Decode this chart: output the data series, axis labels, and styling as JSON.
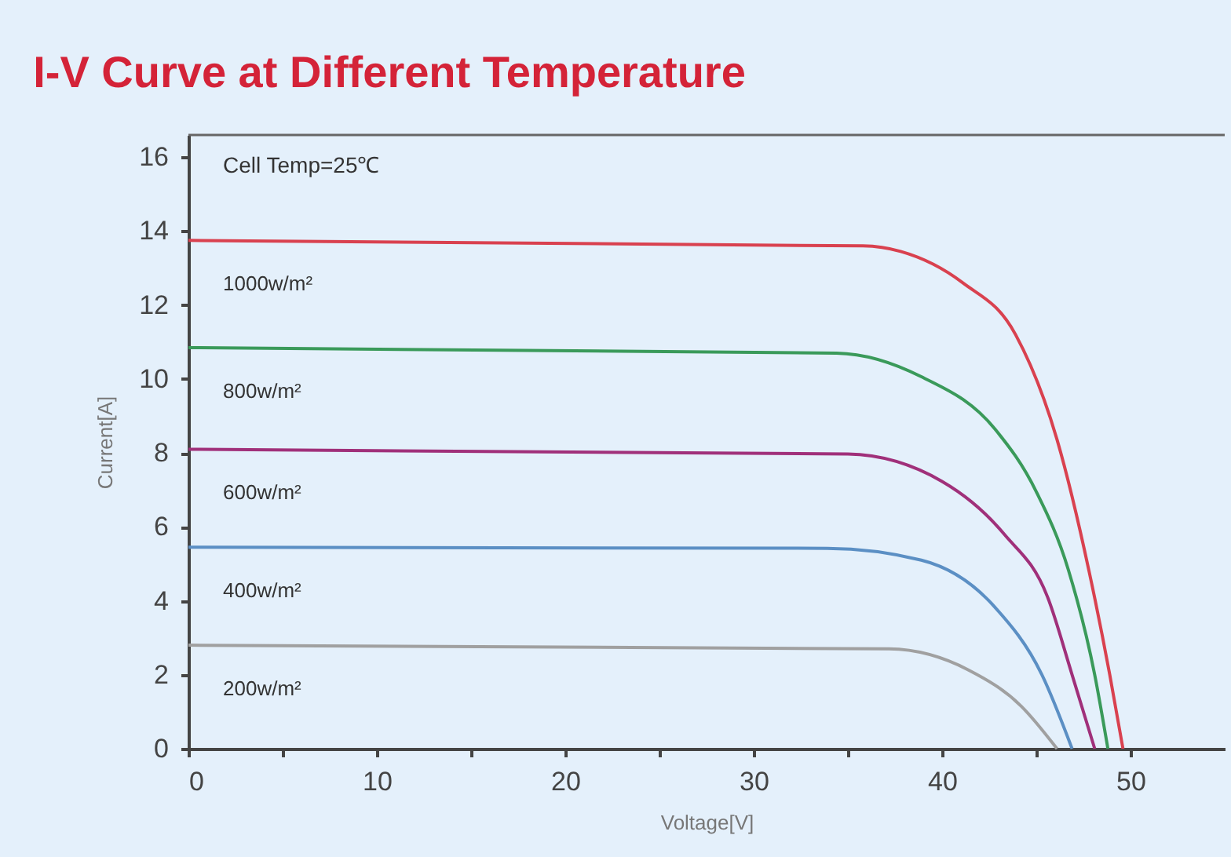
{
  "chart_data": {
    "type": "line",
    "title": "I-V Curve at Different Temperature",
    "xlabel": "Voltage[V]",
    "ylabel": "Current[A]",
    "annotations": [
      "Cell Temp=25℃"
    ],
    "xlim": [
      0,
      55
    ],
    "ylim": [
      0,
      16.6
    ],
    "xticks": [
      0,
      {
        "value": 5,
        "label": null
      },
      10,
      {
        "value": 15,
        "label": null
      },
      20,
      {
        "value": 25,
        "label": null
      },
      30,
      {
        "value": 35,
        "label": null
      },
      40,
      {
        "value": 45,
        "label": null
      },
      50
    ],
    "yticks": [
      0,
      2,
      4,
      6,
      8,
      10,
      12,
      14,
      16
    ],
    "grid": false,
    "marker": "none",
    "line_style": "solid",
    "series": [
      {
        "name": "1000w/m²",
        "color": "#d9414f",
        "x": [
          0,
          35.8,
          37.8,
          41.1,
          43.9,
          46.1,
          47.8,
          48.9,
          49.6
        ],
        "values": [
          13.75,
          13.6,
          13.45,
          12.6,
          11.2,
          8.36,
          4.8,
          2.0,
          0
        ]
      },
      {
        "name": "800w/m²",
        "color": "#3a9a5a",
        "x": [
          0,
          34.4,
          38.9,
          42.8,
          45.0,
          46.7,
          48.1,
          48.8
        ],
        "values": [
          10.85,
          10.7,
          10.06,
          8.65,
          6.95,
          4.84,
          2.0,
          0
        ]
      },
      {
        "name": "600w/m²",
        "color": "#a0307a",
        "x": [
          0,
          35.0,
          40.0,
          43.3,
          45.6,
          46.9,
          48.1
        ],
        "values": [
          8.1,
          7.97,
          7.23,
          5.8,
          4.1,
          2.0,
          0
        ]
      },
      {
        "name": "400w/m²",
        "color": "#5b8fc4",
        "x": [
          0,
          33.9,
          38.9,
          42.8,
          45.3,
          46.9
        ],
        "values": [
          5.45,
          5.42,
          5.1,
          3.83,
          2.0,
          0
        ]
      },
      {
        "name": "200w/m²",
        "color": "#a0a0a0",
        "x": [
          0,
          37.2,
          41.4,
          44.2,
          46.1
        ],
        "values": [
          2.8,
          2.7,
          2.13,
          1.15,
          0
        ]
      }
    ]
  }
}
